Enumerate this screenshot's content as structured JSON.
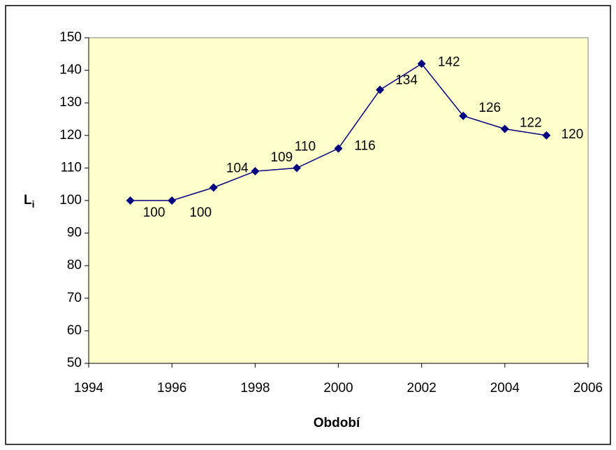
{
  "chart_data": {
    "type": "line",
    "x_label": "Období",
    "y_label": {
      "base": "L",
      "sub": "i"
    },
    "x": [
      1995,
      1996,
      1997,
      1998,
      1999,
      2000,
      2001,
      2002,
      2003,
      2004,
      2005
    ],
    "series": [
      {
        "name": "Li",
        "color": "#000080",
        "values": [
          100,
          100,
          104,
          109,
          110,
          116,
          134,
          142,
          126,
          122,
          120
        ]
      }
    ],
    "xlim": [
      1994,
      2006
    ],
    "xticks": [
      1994,
      1996,
      1998,
      2000,
      2002,
      2004,
      2006
    ],
    "ylim": [
      50,
      150
    ],
    "yticks": [
      50,
      60,
      70,
      80,
      90,
      100,
      110,
      120,
      130,
      140,
      150
    ],
    "plot_background": "#ffffcc",
    "grid": false,
    "legend": false
  }
}
